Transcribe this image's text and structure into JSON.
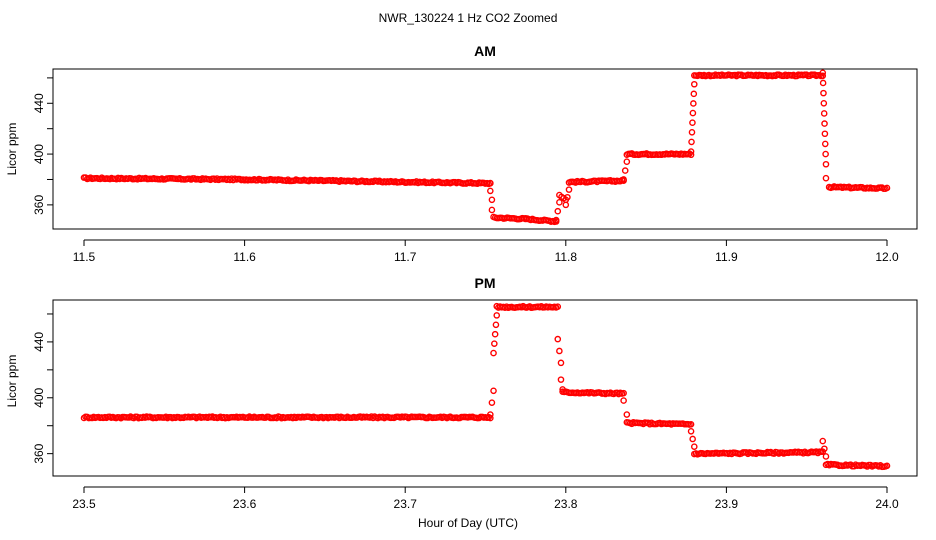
{
  "chart_data": [
    {
      "type": "scatter",
      "title": "AM",
      "xlabel": "",
      "ylabel": "Licor ppm",
      "xlim": [
        11.5,
        12.0
      ],
      "ylim": [
        341,
        467
      ],
      "xticks": [
        "11.5",
        "11.6",
        "11.7",
        "11.8",
        "11.9",
        "12.0"
      ],
      "yticks": [
        "360",
        "400",
        "440"
      ],
      "color": "#ff0000",
      "series": [
        {
          "name": "CO2",
          "segments": [
            {
              "x": [
                11.5,
                11.6
              ],
              "y": [
                381,
                380
              ]
            },
            {
              "x": [
                11.6,
                11.753
              ],
              "y": [
                380,
                377
              ]
            },
            {
              "x": [
                11.753,
                11.753
              ],
              "y": [
                377,
                371
              ]
            },
            {
              "x": [
                11.754,
                11.754
              ],
              "y": [
                364,
                356
              ]
            },
            {
              "x": [
                11.755,
                11.775
              ],
              "y": [
                350,
                349
              ]
            },
            {
              "x": [
                11.775,
                11.794
              ],
              "y": [
                349,
                347
              ]
            },
            {
              "x": [
                11.794,
                11.796
              ],
              "y": [
                348,
                362
              ]
            },
            {
              "x": [
                11.796,
                11.8
              ],
              "y": [
                368,
                364
              ]
            },
            {
              "x": [
                11.8,
                11.802
              ],
              "y": [
                360,
                372
              ]
            },
            {
              "x": [
                11.802,
                11.836
              ],
              "y": [
                378,
                379
              ]
            },
            {
              "x": [
                11.836,
                11.838
              ],
              "y": [
                380,
                394
              ]
            },
            {
              "x": [
                11.838,
                11.878
              ],
              "y": [
                400,
                400
              ]
            },
            {
              "x": [
                11.878,
                11.88
              ],
              "y": [
                402,
                455
              ]
            },
            {
              "x": [
                11.88,
                11.96
              ],
              "y": [
                462,
                462
              ]
            },
            {
              "x": [
                11.96,
                11.962
              ],
              "y": [
                464,
                392
              ]
            },
            {
              "x": [
                11.962,
                11.964
              ],
              "y": [
                381,
                374
              ]
            },
            {
              "x": [
                11.964,
                12.0
              ],
              "y": [
                374,
                373
              ]
            }
          ]
        }
      ]
    },
    {
      "type": "scatter",
      "title": "PM",
      "xlabel": "Hour of Day (UTC)",
      "ylabel": "Licor ppm",
      "xlim": [
        23.5,
        24.0
      ],
      "ylim": [
        344,
        470
      ],
      "xticks": [
        "23.5",
        "23.6",
        "23.7",
        "23.8",
        "23.9",
        "24.0"
      ],
      "yticks": [
        "360",
        "400",
        "440"
      ],
      "color": "#ff0000",
      "series": [
        {
          "name": "CO2",
          "segments": [
            {
              "x": [
                23.5,
                23.753
              ],
              "y": [
                386,
                386
              ]
            },
            {
              "x": [
                23.753,
                23.755
              ],
              "y": [
                388,
                405
              ]
            },
            {
              "x": [
                23.755,
                23.757
              ],
              "y": [
                432,
                459
              ]
            },
            {
              "x": [
                23.757,
                23.795
              ],
              "y": [
                465,
                465
              ]
            },
            {
              "x": [
                23.795,
                23.797
              ],
              "y": [
                442,
                425
              ]
            },
            {
              "x": [
                23.797,
                23.798
              ],
              "y": [
                413,
                406
              ]
            },
            {
              "x": [
                23.798,
                23.836
              ],
              "y": [
                404,
                403
              ]
            },
            {
              "x": [
                23.836,
                23.838
              ],
              "y": [
                398,
                388
              ]
            },
            {
              "x": [
                23.838,
                23.878
              ],
              "y": [
                382,
                381
              ]
            },
            {
              "x": [
                23.878,
                23.88
              ],
              "y": [
                376,
                365
              ]
            },
            {
              "x": [
                23.88,
                23.96
              ],
              "y": [
                360,
                361
              ]
            },
            {
              "x": [
                23.96,
                23.962
              ],
              "y": [
                369,
                358
              ]
            },
            {
              "x": [
                23.962,
                24.0
              ],
              "y": [
                352,
                351
              ]
            }
          ]
        }
      ]
    }
  ],
  "figure": {
    "main_title": "NWR_130224  1 Hz CO2 Zoomed"
  }
}
